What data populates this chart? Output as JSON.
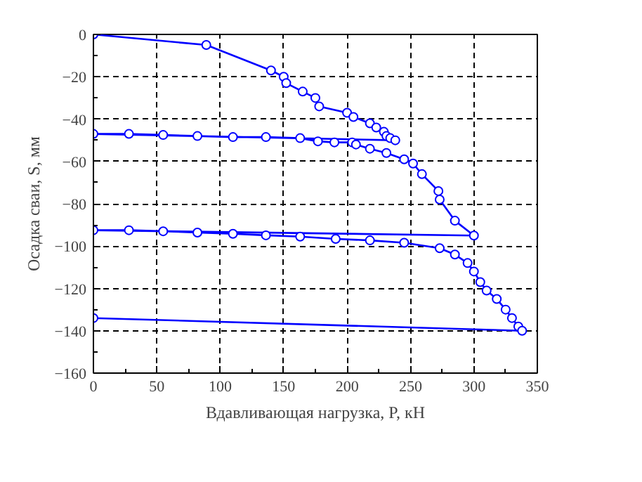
{
  "chart_data": {
    "type": "line",
    "xlabel": "Вдавливающая нагрузка, P, кН",
    "ylabel": "Осадка сваи, S, мм",
    "x": [
      0,
      89,
      140,
      150,
      152,
      165,
      175,
      178,
      200,
      205,
      218,
      223,
      229,
      231,
      234,
      238,
      0,
      28,
      55,
      82,
      110,
      136,
      163,
      177,
      190,
      204,
      207,
      218,
      231,
      245,
      252,
      259,
      272,
      273,
      285,
      300,
      0,
      28,
      55,
      82,
      110,
      136,
      163,
      191,
      218,
      245,
      273,
      285,
      295,
      300,
      305,
      310,
      318,
      325,
      330,
      335,
      338,
      0
    ],
    "series": [
      {
        "color": "#0000ff",
        "values": [
          0,
          -5,
          -17,
          -20,
          -23,
          -27,
          -30,
          -34,
          -37,
          -39,
          -42,
          -44,
          -46,
          -48,
          -49,
          -50,
          -47,
          -47,
          -47.5,
          -48,
          -48.5,
          -48.5,
          -49,
          -50.5,
          -51,
          -51,
          -52,
          -54,
          -56,
          -59,
          -61,
          -66,
          -74,
          -78,
          -88,
          -95,
          -92.5,
          -92.5,
          -93,
          -93.6,
          -94.2,
          -94.9,
          -95.5,
          -96.6,
          -97.3,
          -98.4,
          -101,
          -104,
          -108,
          -112,
          -117,
          -121,
          -125,
          -130,
          -134,
          -138,
          -140,
          -134
        ]
      }
    ],
    "xlim": [
      0,
      350
    ],
    "xticks": [
      0,
      50,
      100,
      150,
      200,
      250,
      300,
      350
    ],
    "ylim": [
      -160,
      0
    ],
    "yticks": [
      -160,
      -140,
      -120,
      -100,
      -80,
      -60,
      -40,
      -20,
      0
    ],
    "grid": true,
    "marker": "circle",
    "line_style": "solid"
  }
}
